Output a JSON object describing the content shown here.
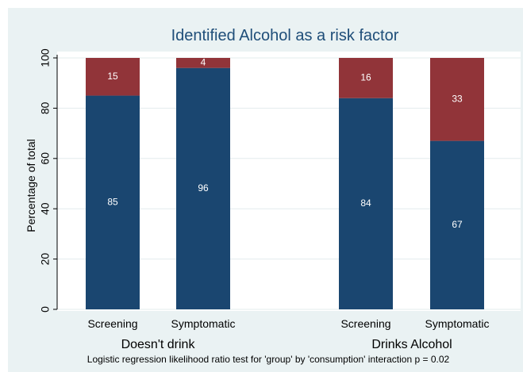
{
  "chart_data": {
    "type": "bar",
    "stacked": true,
    "title": "Identified Alcohol as a risk factor",
    "ylabel": "Percentage of total",
    "xlabel": "",
    "ylim": [
      0,
      100
    ],
    "yticks": [
      0,
      20,
      40,
      60,
      80,
      100
    ],
    "grid": true,
    "legend": "none",
    "groups": [
      {
        "label": "Doesn't drink",
        "categories": [
          "Screening",
          "Symptomatic"
        ]
      },
      {
        "label": "Drinks Alcohol",
        "categories": [
          "Screening",
          "Symptomatic"
        ]
      }
    ],
    "categories": [
      "Screening",
      "Symptomatic",
      "Screening",
      "Symptomatic"
    ],
    "series": [
      {
        "values": [
          85,
          96,
          84,
          67
        ],
        "color": "#1a4670"
      },
      {
        "values": [
          15,
          4,
          16,
          33
        ],
        "color": "#913439"
      }
    ],
    "note": "Logistic regression likelihood ratio test for 'group' by 'consumption' interaction p = 0.02"
  }
}
